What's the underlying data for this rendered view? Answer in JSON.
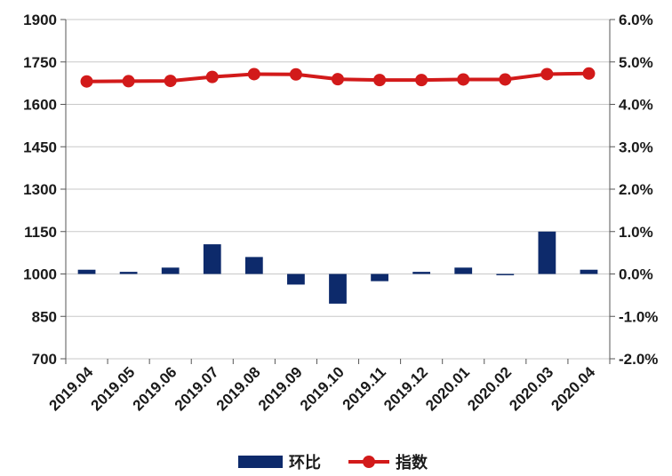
{
  "chart_data": {
    "type": "bar+line",
    "categories": [
      "2019.04",
      "2019.05",
      "2019.06",
      "2019.07",
      "2019.08",
      "2019.09",
      "2019.10",
      "2019.11",
      "2019.12",
      "2020.01",
      "2020.02",
      "2020.03",
      "2020.04"
    ],
    "series": [
      {
        "name": "环比",
        "type": "bar",
        "axis": "right",
        "color": "#0d2a6b",
        "values": [
          0.1,
          0.05,
          0.15,
          0.7,
          0.4,
          -0.25,
          -0.7,
          -0.17,
          0.05,
          0.15,
          -0.03,
          1.0,
          0.1
        ]
      },
      {
        "name": "指数",
        "type": "line",
        "axis": "left",
        "color": "#d21a1a",
        "values": [
          1681,
          1682,
          1683,
          1697,
          1707,
          1706,
          1689,
          1686,
          1686,
          1688,
          1688,
          1707,
          1709
        ]
      }
    ],
    "y_left": {
      "min": 700,
      "max": 1900,
      "ticks": [
        "700",
        "850",
        "1000",
        "1150",
        "1300",
        "1450",
        "1600",
        "1750",
        "1900"
      ]
    },
    "y_right": {
      "min": -2.0,
      "max": 6.0,
      "ticks": [
        "-2.0%",
        "-1.0%",
        "0.0%",
        "1.0%",
        "2.0%",
        "3.0%",
        "4.0%",
        "5.0%",
        "6.0%"
      ]
    },
    "grid": "horizontal",
    "legend_position": "bottom"
  }
}
